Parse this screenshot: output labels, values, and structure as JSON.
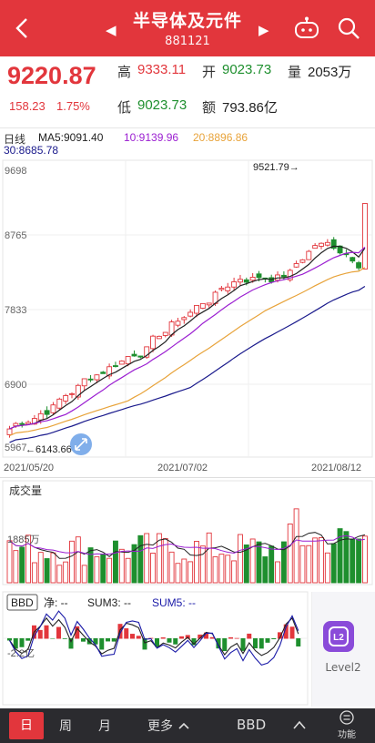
{
  "header": {
    "title": "半导体及元件",
    "code": "881121",
    "prev_arrow": "◀",
    "next_arrow": "▶"
  },
  "quote": {
    "price": "9220.87",
    "change": "158.23",
    "change_pct": "1.75%",
    "high_label": "高",
    "high": "9333.11",
    "open_label": "开",
    "open": "9023.73",
    "vol_label": "量",
    "vol": "2053万",
    "low_label": "低",
    "low": "9023.73",
    "amount_label": "额",
    "amount": "793.86亿"
  },
  "ma": {
    "period": "日线",
    "ma5": "MA5:9091.40",
    "ma10": "10:9139.96",
    "ma20": "20:8896.86",
    "ma30": "30:8685.78"
  },
  "kline": {
    "y_ticks": [
      "9698",
      "8765",
      "7833",
      "6900",
      "5967"
    ],
    "x_ticks": [
      "2021/05/20",
      "2021/07/02",
      "2021/08/12"
    ],
    "max_label": "9521.79→",
    "min_label": "←6143.66"
  },
  "volume": {
    "title": "成交量",
    "tick": "1885万"
  },
  "bbd": {
    "title": "BBD",
    "net": "净: --",
    "sum3": "SUM3: --",
    "sum5": "SUM5: --",
    "tick": "-2.2亿"
  },
  "level2": {
    "label": "Level2",
    "badge": "L2"
  },
  "bottom": {
    "day": "日",
    "week": "周",
    "month": "月",
    "more": "更多",
    "indicator": "BBD",
    "func": "功能"
  },
  "colors": {
    "accent": "#e2363c",
    "up": "#e2363c",
    "down": "#1e8f2e",
    "ma5": "#222222",
    "ma10": "#9b1fd1",
    "ma20": "#e8a33a",
    "ma30": "#1a1a8c"
  }
}
